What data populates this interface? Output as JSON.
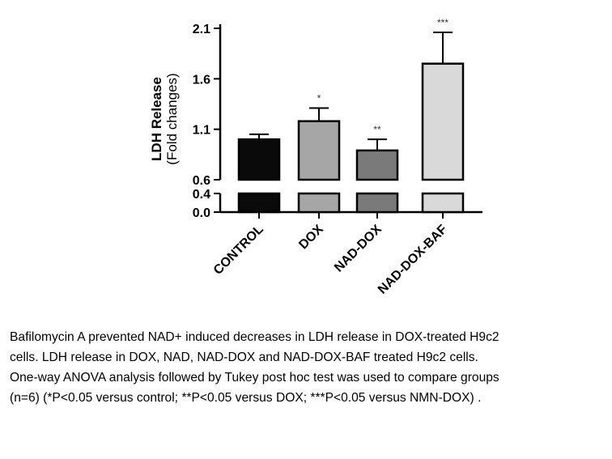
{
  "chart_data": {
    "type": "bar",
    "ylabel": "LDH Release",
    "ylabel_sub": "(Fold changes)",
    "xlabel": "",
    "categories": [
      "CONTROL",
      "DOX",
      "NAD-DOX",
      "NAD-DOX-BAF"
    ],
    "values": [
      1.0,
      1.18,
      0.89,
      1.75
    ],
    "errors": [
      0.05,
      0.13,
      0.11,
      0.31
    ],
    "significance": [
      "",
      "*",
      "**",
      "***"
    ],
    "bar_colors": [
      "#0a0a0a",
      "#a6a6a6",
      "#7a7a7a",
      "#d9d9d9"
    ],
    "upper_ticks": [
      0.6,
      1.1,
      1.6,
      2.1
    ],
    "upper_tick_labels": [
      "0.6",
      "1.1",
      "1.6",
      "2.1"
    ],
    "lower_ticks": [
      0.0,
      0.4
    ],
    "lower_tick_labels": [
      "0.0",
      "0.4"
    ],
    "upper_ylim": [
      0.6,
      2.1
    ],
    "lower_ylim": [
      0.0,
      0.4
    ],
    "axis_break": true,
    "grid": false,
    "legend": "none"
  },
  "caption": {
    "lines": [
      "Bafilomycin A prevented NAD+ induced decreases in LDH release in DOX-treated H9c2",
      "cells. LDH release in DOX, NAD, NAD-DOX and NAD-DOX-BAF treated H9c2 cells.",
      "One-way ANOVA analysis followed by Tukey post hoc test was used to compare groups",
      "(n=6) (*P<0.05 versus control; **P<0.05 versus DOX; ***P<0.05 versus NMN-DOX) ."
    ]
  }
}
